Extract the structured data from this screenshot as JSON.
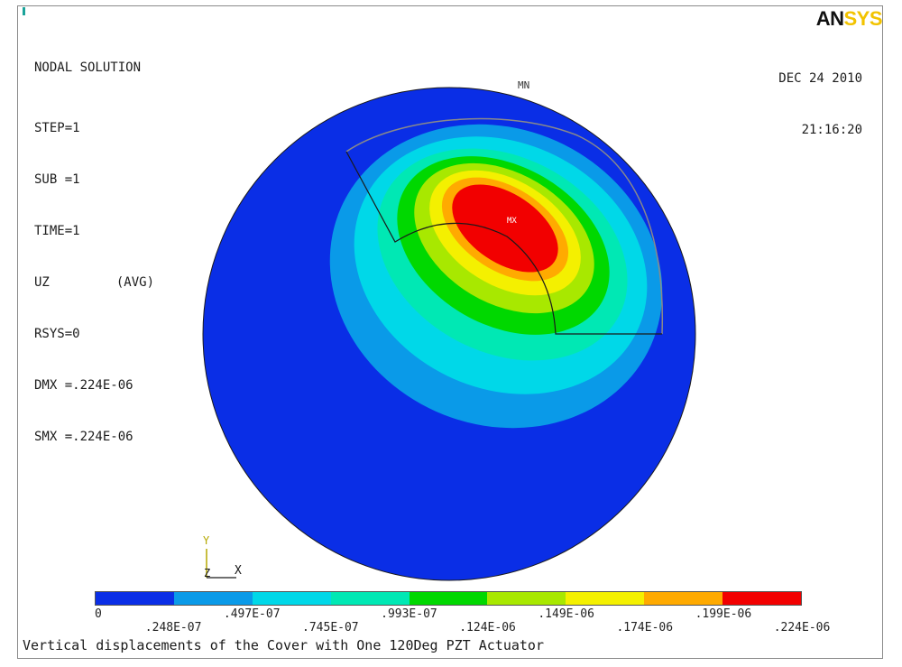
{
  "header": {
    "logo_an": "AN",
    "logo_sys": "SYS",
    "date": "DEC 24 2010",
    "time": "21:16:20"
  },
  "solution_info": {
    "title": "NODAL SOLUTION",
    "step": "STEP=1",
    "sub": "SUB =1",
    "time": "TIME=1",
    "result": "UZ",
    "avg": "(AVG)",
    "rsys": "RSYS=0",
    "dmx": "DMX =.224E-06",
    "smx": "SMX =.224E-06"
  },
  "plot_labels": {
    "min_marker": "MN",
    "max_marker": "MX",
    "axis_y": "Y",
    "axis_z": "Z",
    "axis_x": "X"
  },
  "legend": {
    "colors": [
      "#0a2ee6",
      "#0a9ae8",
      "#00d8e8",
      "#00e8b4",
      "#00d800",
      "#a8e800",
      "#f4f000",
      "#ffaa00",
      "#f20000"
    ],
    "ticks": [
      "0",
      ".248E-07",
      ".497E-07",
      ".745E-07",
      ".993E-07",
      ".124E-06",
      ".149E-06",
      ".174E-06",
      ".199E-06",
      ".224E-06"
    ]
  },
  "caption": "Vertical displacements of the Cover with One 120Deg PZT Actuator"
}
